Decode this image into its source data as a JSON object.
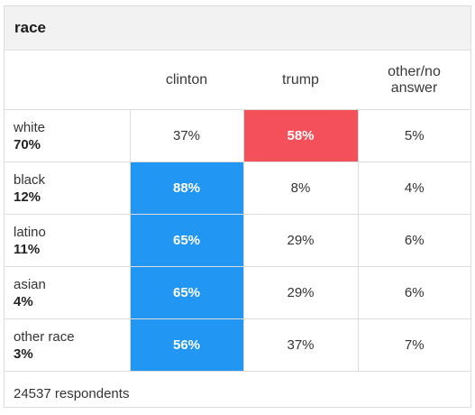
{
  "title": "race",
  "columns": [
    "clinton",
    "trump",
    "other/no answer"
  ],
  "rows": [
    {
      "name": "white",
      "share": "70%",
      "values": [
        "37%",
        "58%",
        "5%"
      ],
      "highlight": [
        "none",
        "red",
        "none"
      ]
    },
    {
      "name": "black",
      "share": "12%",
      "values": [
        "88%",
        "8%",
        "4%"
      ],
      "highlight": [
        "blue",
        "none",
        "none"
      ]
    },
    {
      "name": "latino",
      "share": "11%",
      "values": [
        "65%",
        "29%",
        "6%"
      ],
      "highlight": [
        "blue",
        "none",
        "none"
      ]
    },
    {
      "name": "asian",
      "share": "4%",
      "values": [
        "65%",
        "29%",
        "6%"
      ],
      "highlight": [
        "blue",
        "none",
        "none"
      ]
    },
    {
      "name": "other race",
      "share": "3%",
      "values": [
        "56%",
        "37%",
        "7%"
      ],
      "highlight": [
        "blue",
        "none",
        "none"
      ]
    }
  ],
  "footer": "24537 respondents",
  "colors": {
    "clinton": "#2196f3",
    "trump": "#f4505a"
  }
}
